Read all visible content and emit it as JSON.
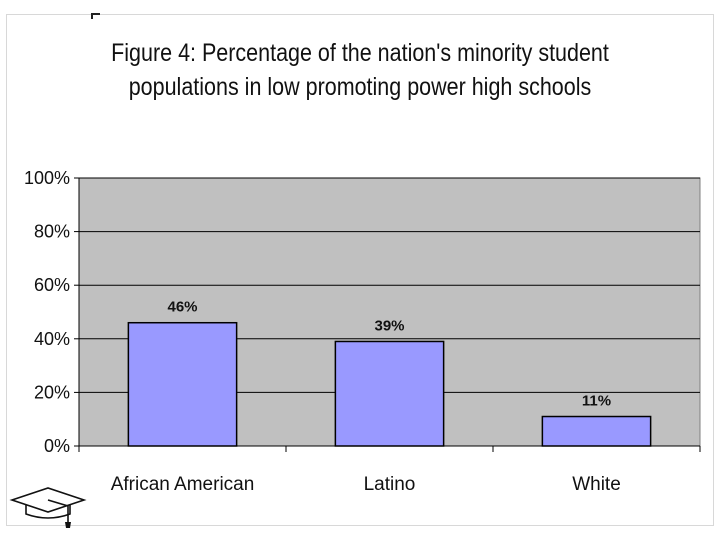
{
  "chart_data": {
    "type": "bar",
    "title": "Figure 4: Percentage of the nation's minority student populations in low promoting power high schools",
    "title_lines": [
      "Figure 4: Percentage of the nation's minority student",
      "populations in low promoting power high schools"
    ],
    "categories": [
      "African American",
      "Latino",
      "White"
    ],
    "values": [
      46,
      39,
      11
    ],
    "data_labels": [
      "46%",
      "39%",
      "11%"
    ],
    "ylim": [
      0,
      100
    ],
    "yticks": [
      0,
      20,
      40,
      60,
      80,
      100
    ],
    "ytick_labels": [
      "0%",
      "20%",
      "40%",
      "60%",
      "80%",
      "100%"
    ],
    "xlabel": "",
    "ylabel": "",
    "grid": true,
    "legend": "none",
    "colors": {
      "bar_fill": "#9999ff",
      "bar_stroke": "#000000",
      "plot_bg": "#c0c0c0",
      "grid": "#000000"
    }
  },
  "decor": {
    "logo_icon": "graduation-cap-icon"
  }
}
